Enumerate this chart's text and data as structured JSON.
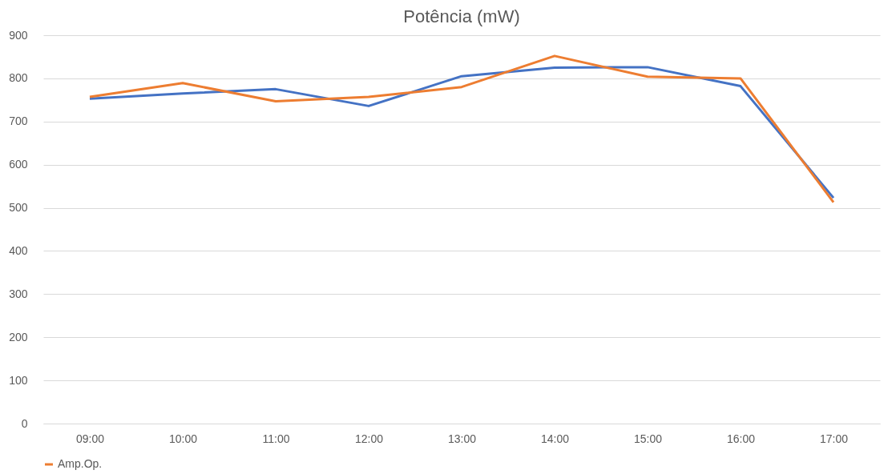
{
  "chart_data": {
    "type": "line",
    "title": "Potência (mW)",
    "categories": [
      "09:00",
      "10:00",
      "11:00",
      "12:00",
      "13:00",
      "14:00",
      "15:00",
      "16:00",
      "17:00"
    ],
    "series": [
      {
        "color": "#4472c4",
        "values": [
          753,
          765,
          775,
          736,
          805,
          825,
          826,
          782,
          523
        ]
      },
      {
        "name": "Amp.Op.",
        "color": "#ed7d31",
        "values": [
          757,
          789,
          747,
          757,
          780,
          852,
          804,
          800,
          513
        ]
      }
    ],
    "ylim": [
      0,
      900
    ],
    "yticks": [
      0,
      100,
      200,
      300,
      400,
      500,
      600,
      700,
      800,
      900
    ],
    "grid": "y",
    "legend": "bottom",
    "marker": "none",
    "line_style": "solid"
  }
}
